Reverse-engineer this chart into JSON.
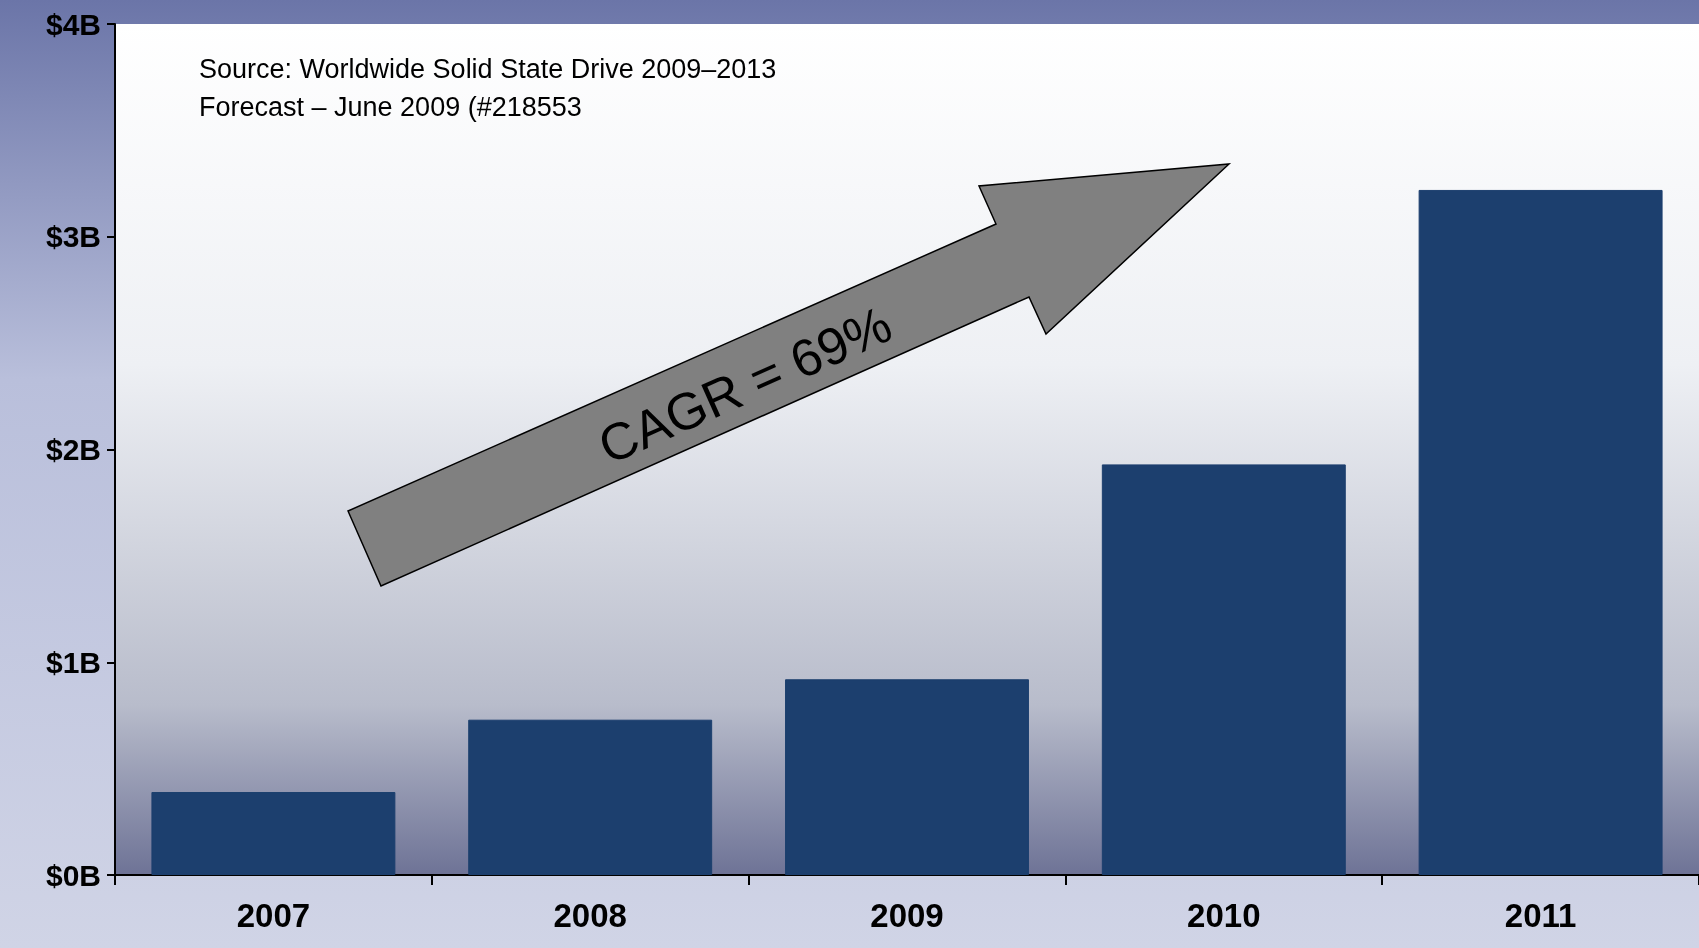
{
  "chart_data": {
    "type": "bar",
    "categories": [
      "2007",
      "2008",
      "2009",
      "2010",
      "2011"
    ],
    "values": [
      0.39,
      0.73,
      0.92,
      1.93,
      3.22
    ],
    "color": "#1c3f6e",
    "ylim": [
      0,
      4
    ],
    "yticks": [
      {
        "value": 0,
        "label": "$0B"
      },
      {
        "value": 1,
        "label": "$1B"
      },
      {
        "value": 2,
        "label": "$2B"
      },
      {
        "value": 3,
        "label": "$3B"
      },
      {
        "value": 4,
        "label": "$4B"
      }
    ],
    "grid": false,
    "annotations": [
      "Source: Worldwide Solid State Drive 2009–2013",
      "Forecast – June 2009 (#218553",
      "CAGR = 69%"
    ]
  }
}
